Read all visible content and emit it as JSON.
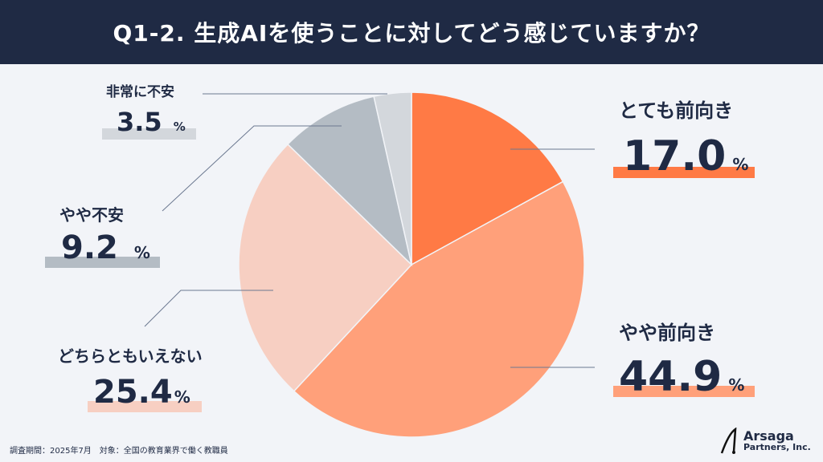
{
  "header": {
    "title": "Q1-2. 生成AIを使うことに対してどう感じていますか？"
  },
  "chart_data": {
    "type": "pie",
    "title": "Q1-2. 生成AIを使うことに対してどう感じていますか？",
    "start": "top",
    "direction": "clockwise",
    "unit": "%",
    "slices": [
      {
        "label": "とても前向き",
        "value": 17.0,
        "display": "17.0",
        "color": "#ff7a45"
      },
      {
        "label": "やや前向き",
        "value": 44.9,
        "display": "44.9",
        "color": "#ffa07a"
      },
      {
        "label": "どちらともいえない",
        "value": 25.4,
        "display": "25.4",
        "color": "#f7cfc2"
      },
      {
        "label": "やや不安",
        "value": 9.2,
        "display": "9.2",
        "color": "#b4bcc4"
      },
      {
        "label": "非常に不安",
        "value": 3.5,
        "display": "3.5",
        "color": "#d3d7dc"
      }
    ]
  },
  "footer": {
    "note": "調査期間：2025年7月　対象：全国の教育業界で働く教職員"
  },
  "logo": {
    "name": "Arsaga",
    "sub": "Partners, Inc."
  }
}
